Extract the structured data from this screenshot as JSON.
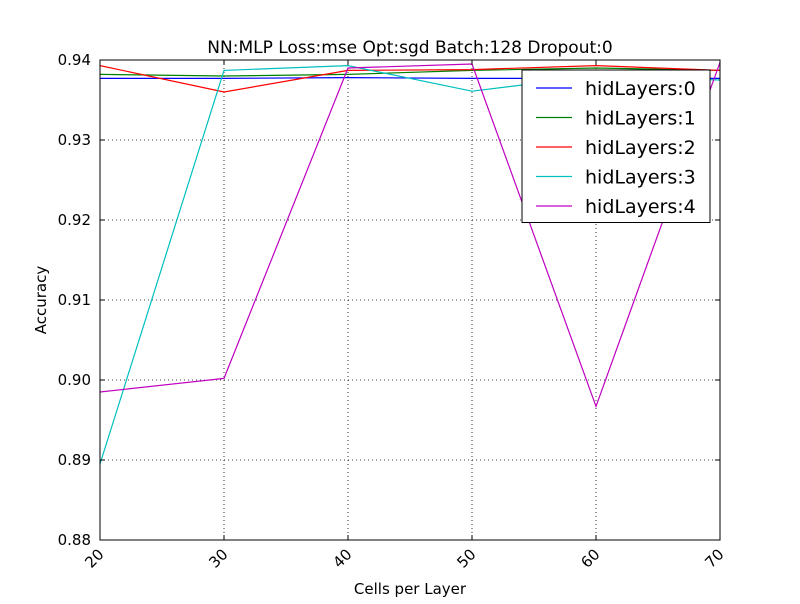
{
  "chart_data": {
    "type": "line",
    "title": "NN:MLP  Loss:mse  Opt:sgd  Batch:128  Dropout:0",
    "xlabel": "Cells per Layer",
    "ylabel": "Accuracy",
    "x": [
      20,
      30,
      40,
      50,
      60,
      70
    ],
    "xlim": [
      20,
      70
    ],
    "ylim": [
      0.88,
      0.94
    ],
    "xticks": [
      "20",
      "30",
      "40",
      "50",
      "60",
      "70"
    ],
    "yticks": [
      "0.88",
      "0.89",
      "0.90",
      "0.91",
      "0.92",
      "0.93",
      "0.94"
    ],
    "grid": true,
    "legend_position": "top-right",
    "series": [
      {
        "name": "hidLayers:0",
        "color": "#0000ff",
        "values": [
          0.9377,
          0.9377,
          0.9378,
          0.9377,
          0.9377,
          0.9377
        ]
      },
      {
        "name": "hidLayers:1",
        "color": "#008000",
        "values": [
          0.9382,
          0.938,
          0.9382,
          0.9387,
          0.939,
          0.9387
        ]
      },
      {
        "name": "hidLayers:2",
        "color": "#ff0000",
        "values": [
          0.9393,
          0.936,
          0.9387,
          0.9388,
          0.9393,
          0.9387
        ]
      },
      {
        "name": "hidLayers:3",
        "color": "#00bfbf",
        "values": [
          0.8895,
          0.9387,
          0.9393,
          0.9361,
          0.938,
          0.9375
        ]
      },
      {
        "name": "hidLayers:4",
        "color": "#bf00bf",
        "values": [
          0.8985,
          0.9002,
          0.939,
          0.9395,
          0.8967,
          0.9397
        ]
      }
    ]
  }
}
